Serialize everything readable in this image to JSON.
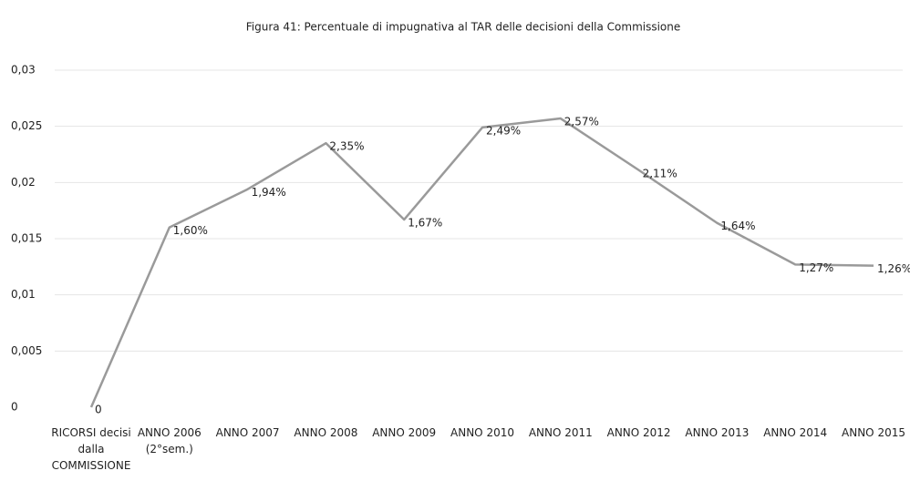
{
  "chart_data": {
    "type": "line",
    "title": "Figura 41: Percentuale di impugnativa al TAR delle decisioni della Commissione",
    "categories": [
      "RICORSI decisi\ndalla\nCOMMISSIONE",
      "ANNO 2006\n(2°sem.)",
      "ANNO 2007",
      "ANNO 2008",
      "ANNO 2009",
      "ANNO 2010",
      "ANNO 2011",
      "ANNO 2012",
      "ANNO 2013",
      "ANNO 2014",
      "ANNO 2015"
    ],
    "values": [
      0,
      0.016,
      0.0194,
      0.0235,
      0.0167,
      0.0249,
      0.0257,
      0.0211,
      0.0164,
      0.0127,
      0.0126
    ],
    "value_labels": [
      "0",
      "1,60%",
      "1,94%",
      "2,35%",
      "1,67%",
      "2,49%",
      "2,57%",
      "2,11%",
      "1,64%",
      "1,27%",
      "1,26%"
    ],
    "color": "#9a9a9a",
    "ylim": [
      0,
      0.03
    ],
    "yticks": [
      0,
      {
        "value": 0.005,
        "label": "0,005"
      },
      {
        "value": 0.01,
        "label": "0,01"
      },
      {
        "value": 0.015,
        "label": "0,015"
      },
      {
        "value": 0.02,
        "label": "0,02"
      },
      {
        "value": 0.025,
        "label": "0,025"
      },
      {
        "value": 0.03,
        "label": "0,03"
      }
    ],
    "grid": true
  }
}
